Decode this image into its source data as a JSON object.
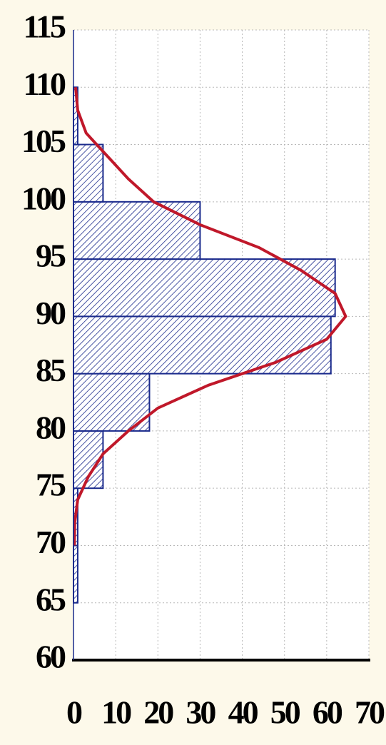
{
  "chart_data": {
    "type": "histogram",
    "orientation": "horizontal",
    "bins": [
      65,
      70,
      75,
      80,
      85,
      90,
      95,
      100,
      105,
      110
    ],
    "values": [
      1,
      1,
      7,
      18,
      61,
      62,
      30,
      7,
      1
    ],
    "color": "#1a2a8c",
    "curve": {
      "color": "#c0182a",
      "y": [
        110,
        108,
        106,
        104,
        102,
        100,
        98,
        96,
        94,
        92,
        90,
        88,
        86,
        84,
        82,
        80,
        78,
        76,
        74,
        72,
        70
      ],
      "x": [
        0.5,
        1,
        3,
        8,
        13,
        19,
        30,
        44,
        54,
        62,
        64.5,
        60,
        48,
        32,
        20,
        13,
        7,
        3.5,
        1,
        0.3,
        0.2
      ]
    },
    "xlim": [
      0,
      70
    ],
    "xticks": [
      0,
      10,
      20,
      30,
      40,
      50,
      60,
      70
    ],
    "ylim": [
      60,
      115
    ],
    "yticks": [
      60,
      65,
      70,
      75,
      80,
      85,
      90,
      95,
      100,
      105,
      110,
      115
    ],
    "grid": true
  }
}
